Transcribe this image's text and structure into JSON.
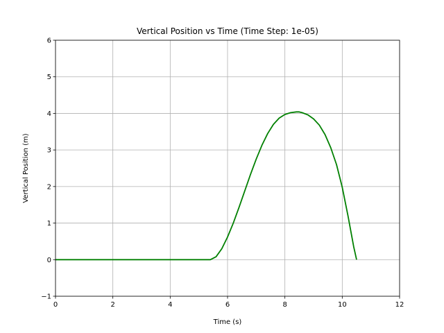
{
  "chart_data": {
    "type": "line",
    "title": "Vertical Position vs Time (Time Step: 1e-05)",
    "xlabel": "Time (s)",
    "ylabel": "Vertical Position (m)",
    "xlim": [
      0,
      12
    ],
    "ylim": [
      -1,
      6
    ],
    "xticks": [
      0,
      2,
      4,
      6,
      8,
      10,
      12
    ],
    "yticks": [
      -1,
      0,
      1,
      2,
      3,
      4,
      5,
      6
    ],
    "xtick_labels": [
      "0",
      "2",
      "4",
      "6",
      "8",
      "10",
      "12"
    ],
    "ytick_labels": [
      "−1",
      "0",
      "1",
      "2",
      "3",
      "4",
      "5",
      "6"
    ],
    "grid": true,
    "colors": {
      "line": "#008000",
      "grid": "#b0b0b0",
      "axes": "#000000"
    },
    "series": [
      {
        "x": [
          0,
          1,
          2,
          3,
          4,
          5,
          5.4,
          5.6,
          5.8,
          6.0,
          6.2,
          6.4,
          6.6,
          6.8,
          7.0,
          7.2,
          7.4,
          7.6,
          7.8,
          8.0,
          8.2,
          8.4,
          8.5,
          8.6,
          8.8,
          9.0,
          9.2,
          9.4,
          9.6,
          9.8,
          10.0,
          10.2,
          10.4,
          10.5
        ],
        "y": [
          0,
          0,
          0,
          0,
          0,
          0,
          0,
          0.08,
          0.3,
          0.62,
          1.0,
          1.43,
          1.88,
          2.33,
          2.75,
          3.13,
          3.45,
          3.7,
          3.87,
          3.97,
          4.02,
          4.04,
          4.04,
          4.02,
          3.96,
          3.85,
          3.68,
          3.42,
          3.06,
          2.6,
          1.98,
          1.2,
          0.35,
          0
        ]
      }
    ]
  }
}
